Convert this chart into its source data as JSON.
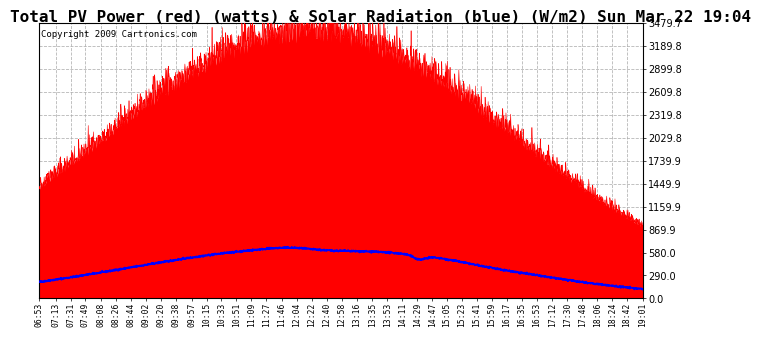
{
  "title": "Total PV Power (red) (watts) & Solar Radiation (blue) (W/m2) Sun Mar 22 19:04",
  "copyright": "Copyright 2009 Cartronics.com",
  "background_color": "#ffffff",
  "plot_bg_color": "#ffffff",
  "grid_color": "#aaaaaa",
  "ytick_labels": [
    "0.0",
    "290.0",
    "580.0",
    "869.9",
    "1159.9",
    "1449.9",
    "1739.9",
    "2029.8",
    "2319.8",
    "2609.8",
    "2899.8",
    "3189.8",
    "3479.7"
  ],
  "ytick_values": [
    0.0,
    290.0,
    580.0,
    869.9,
    1159.9,
    1449.9,
    1739.9,
    2029.8,
    2319.8,
    2609.8,
    2899.8,
    3189.8,
    3479.7
  ],
  "pv_color": "#ff0000",
  "solar_color": "#0000ff",
  "title_fontsize": 11.5,
  "copyright_fontsize": 6.5,
  "xtick_fontsize": 5.8,
  "ytick_fontsize": 7.0,
  "time_labels": [
    "06:53",
    "07:13",
    "07:31",
    "07:49",
    "08:08",
    "08:26",
    "08:44",
    "09:02",
    "09:20",
    "09:38",
    "09:57",
    "10:15",
    "10:33",
    "10:51",
    "11:09",
    "11:27",
    "11:46",
    "12:04",
    "12:22",
    "12:40",
    "12:58",
    "13:16",
    "13:35",
    "13:53",
    "14:11",
    "14:29",
    "14:47",
    "15:05",
    "15:23",
    "15:41",
    "15:59",
    "16:17",
    "16:35",
    "16:53",
    "17:12",
    "17:30",
    "17:48",
    "18:06",
    "18:24",
    "18:42",
    "19:01"
  ]
}
